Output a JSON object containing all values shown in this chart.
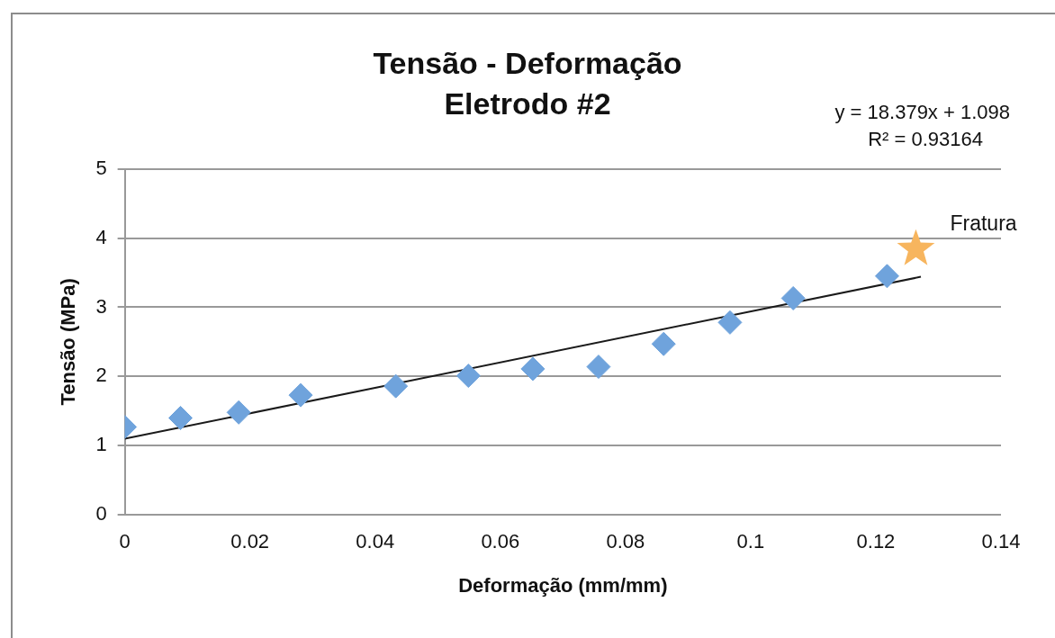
{
  "chart_data": {
    "type": "scatter",
    "title": "Tensão - Deformação",
    "subtitle": "Eletrodo #2",
    "xlabel": "Deformação (mm/mm)",
    "ylabel": "Tensão (MPa)",
    "series": [
      {
        "type": "scatter",
        "marker": "diamond",
        "color": "#6fa3dc",
        "x": [
          0,
          0.0089,
          0.0182,
          0.0281,
          0.0433,
          0.0549,
          0.0652,
          0.0757,
          0.0861,
          0.0967,
          0.1068,
          0.1218
        ],
        "values": [
          1.27,
          1.4,
          1.48,
          1.73,
          1.86,
          2.01,
          2.11,
          2.14,
          2.47,
          2.78,
          3.13,
          3.45
        ]
      },
      {
        "type": "scatter",
        "marker": "star",
        "color": "#f7b55e",
        "x": [
          0.1264
        ],
        "values": [
          3.84
        ]
      },
      {
        "type": "line",
        "marker": "none",
        "color": "#1a1a1a",
        "x": [
          0,
          0.1272
        ],
        "values": [
          1.1,
          3.44
        ]
      }
    ],
    "annotations": [
      "y = 18.379x + 1.098",
      "R² = 0.93164",
      {
        "text": "Fratura",
        "x": 0.1264,
        "y": 3.84
      }
    ],
    "xlim": [
      0,
      0.14
    ],
    "xticks": [
      0,
      0.02,
      0.04,
      0.06,
      0.08,
      0.1,
      0.12,
      0.14
    ],
    "ylim": [
      0,
      5
    ],
    "yticks": [
      0,
      1,
      2,
      3,
      4,
      5
    ],
    "grid": "y",
    "legend": false
  }
}
